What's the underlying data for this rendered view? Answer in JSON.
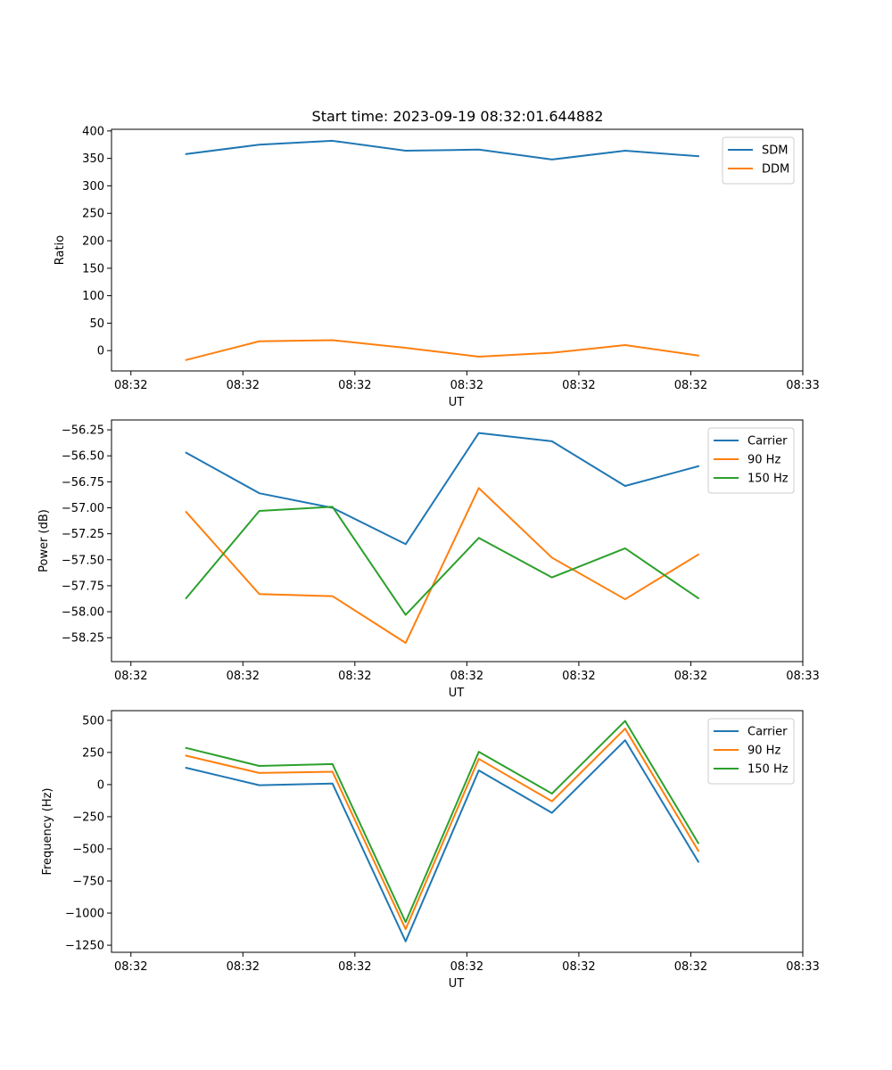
{
  "title": "Start time: 2023-09-19 08:32:01.644882",
  "chart_data": [
    {
      "type": "line",
      "title": "Start time: 2023-09-19 08:32:01.644882",
      "xlabel": "UT",
      "ylabel": "Ratio",
      "xlim": [
        -0.13,
        4.5
      ],
      "ylim": [
        -37,
        403
      ],
      "xticks": [
        0,
        0.75,
        1.5,
        2.25,
        3.0,
        3.75,
        4.5
      ],
      "xtick_labels": [
        "08:32",
        "08:32",
        "08:32",
        "08:32",
        "08:32",
        "08:32",
        "08:33"
      ],
      "yticks": [
        0,
        50,
        100,
        150,
        200,
        250,
        300,
        350,
        400
      ],
      "ytick_labels": [
        "0",
        "50",
        "100",
        "150",
        "200",
        "250",
        "300",
        "350",
        "400"
      ],
      "legend_position": "upper right",
      "x": [
        0.37,
        0.86,
        1.35,
        1.84,
        2.33,
        2.82,
        3.31,
        3.8
      ],
      "series": [
        {
          "name": "SDM",
          "color": "#1f77b4",
          "values": [
            358,
            375,
            382,
            364,
            366,
            348,
            364,
            354
          ]
        },
        {
          "name": "DDM",
          "color": "#ff7f0e",
          "values": [
            -17,
            17,
            19,
            5,
            -11,
            -4,
            10,
            -9
          ]
        }
      ]
    },
    {
      "type": "line",
      "title": "",
      "xlabel": "UT",
      "ylabel": "Power (dB)",
      "xlim": [
        -0.13,
        4.5
      ],
      "ylim": [
        -58.48,
        -56.155
      ],
      "xticks": [
        0,
        0.75,
        1.5,
        2.25,
        3.0,
        3.75,
        4.5
      ],
      "xtick_labels": [
        "08:32",
        "08:32",
        "08:32",
        "08:32",
        "08:32",
        "08:32",
        "08:33"
      ],
      "yticks": [
        -58.25,
        -58.0,
        -57.75,
        -57.5,
        -57.25,
        -57.0,
        -56.75,
        -56.5,
        -56.25
      ],
      "ytick_labels": [
        "−58.25",
        "−58.00",
        "−57.75",
        "−57.50",
        "−57.25",
        "−57.00",
        "−56.75",
        "−56.50",
        "−56.25"
      ],
      "legend_position": "upper right",
      "x": [
        0.37,
        0.86,
        1.35,
        1.84,
        2.33,
        2.82,
        3.31,
        3.8
      ],
      "series": [
        {
          "name": "Carrier",
          "color": "#1f77b4",
          "values": [
            -56.47,
            -56.86,
            -57.0,
            -57.35,
            -56.28,
            -56.36,
            -56.79,
            -56.6
          ]
        },
        {
          "name": "90 Hz",
          "color": "#ff7f0e",
          "values": [
            -57.04,
            -57.83,
            -57.85,
            -58.3,
            -56.81,
            -57.48,
            -57.88,
            -57.45
          ]
        },
        {
          "name": "150 Hz",
          "color": "#2ca02c",
          "values": [
            -57.87,
            -57.03,
            -56.99,
            -58.03,
            -57.29,
            -57.67,
            -57.39,
            -57.87
          ]
        }
      ]
    },
    {
      "type": "line",
      "title": "",
      "xlabel": "UT",
      "ylabel": "Frequency (Hz)",
      "xlim": [
        -0.13,
        4.5
      ],
      "ylim": [
        -1305,
        575
      ],
      "xticks": [
        0,
        0.75,
        1.5,
        2.25,
        3.0,
        3.75,
        4.5
      ],
      "xtick_labels": [
        "08:32",
        "08:32",
        "08:32",
        "08:32",
        "08:32",
        "08:32",
        "08:33"
      ],
      "yticks": [
        -1250,
        -1000,
        -750,
        -500,
        -250,
        0,
        250,
        500
      ],
      "ytick_labels": [
        "−1250",
        "−1000",
        "−750",
        "−500",
        "−250",
        "0",
        "250",
        "500"
      ],
      "legend_position": "upper right",
      "x": [
        0.37,
        0.86,
        1.35,
        1.84,
        2.33,
        2.82,
        3.31,
        3.8
      ],
      "series": [
        {
          "name": "Carrier",
          "color": "#1f77b4",
          "values": [
            130,
            -5,
            8,
            -1220,
            110,
            -220,
            345,
            -600
          ]
        },
        {
          "name": "90 Hz",
          "color": "#ff7f0e",
          "values": [
            225,
            90,
            100,
            -1125,
            200,
            -130,
            435,
            -515
          ]
        },
        {
          "name": "150 Hz",
          "color": "#2ca02c",
          "values": [
            285,
            145,
            160,
            -1070,
            255,
            -70,
            495,
            -455
          ]
        }
      ]
    }
  ]
}
